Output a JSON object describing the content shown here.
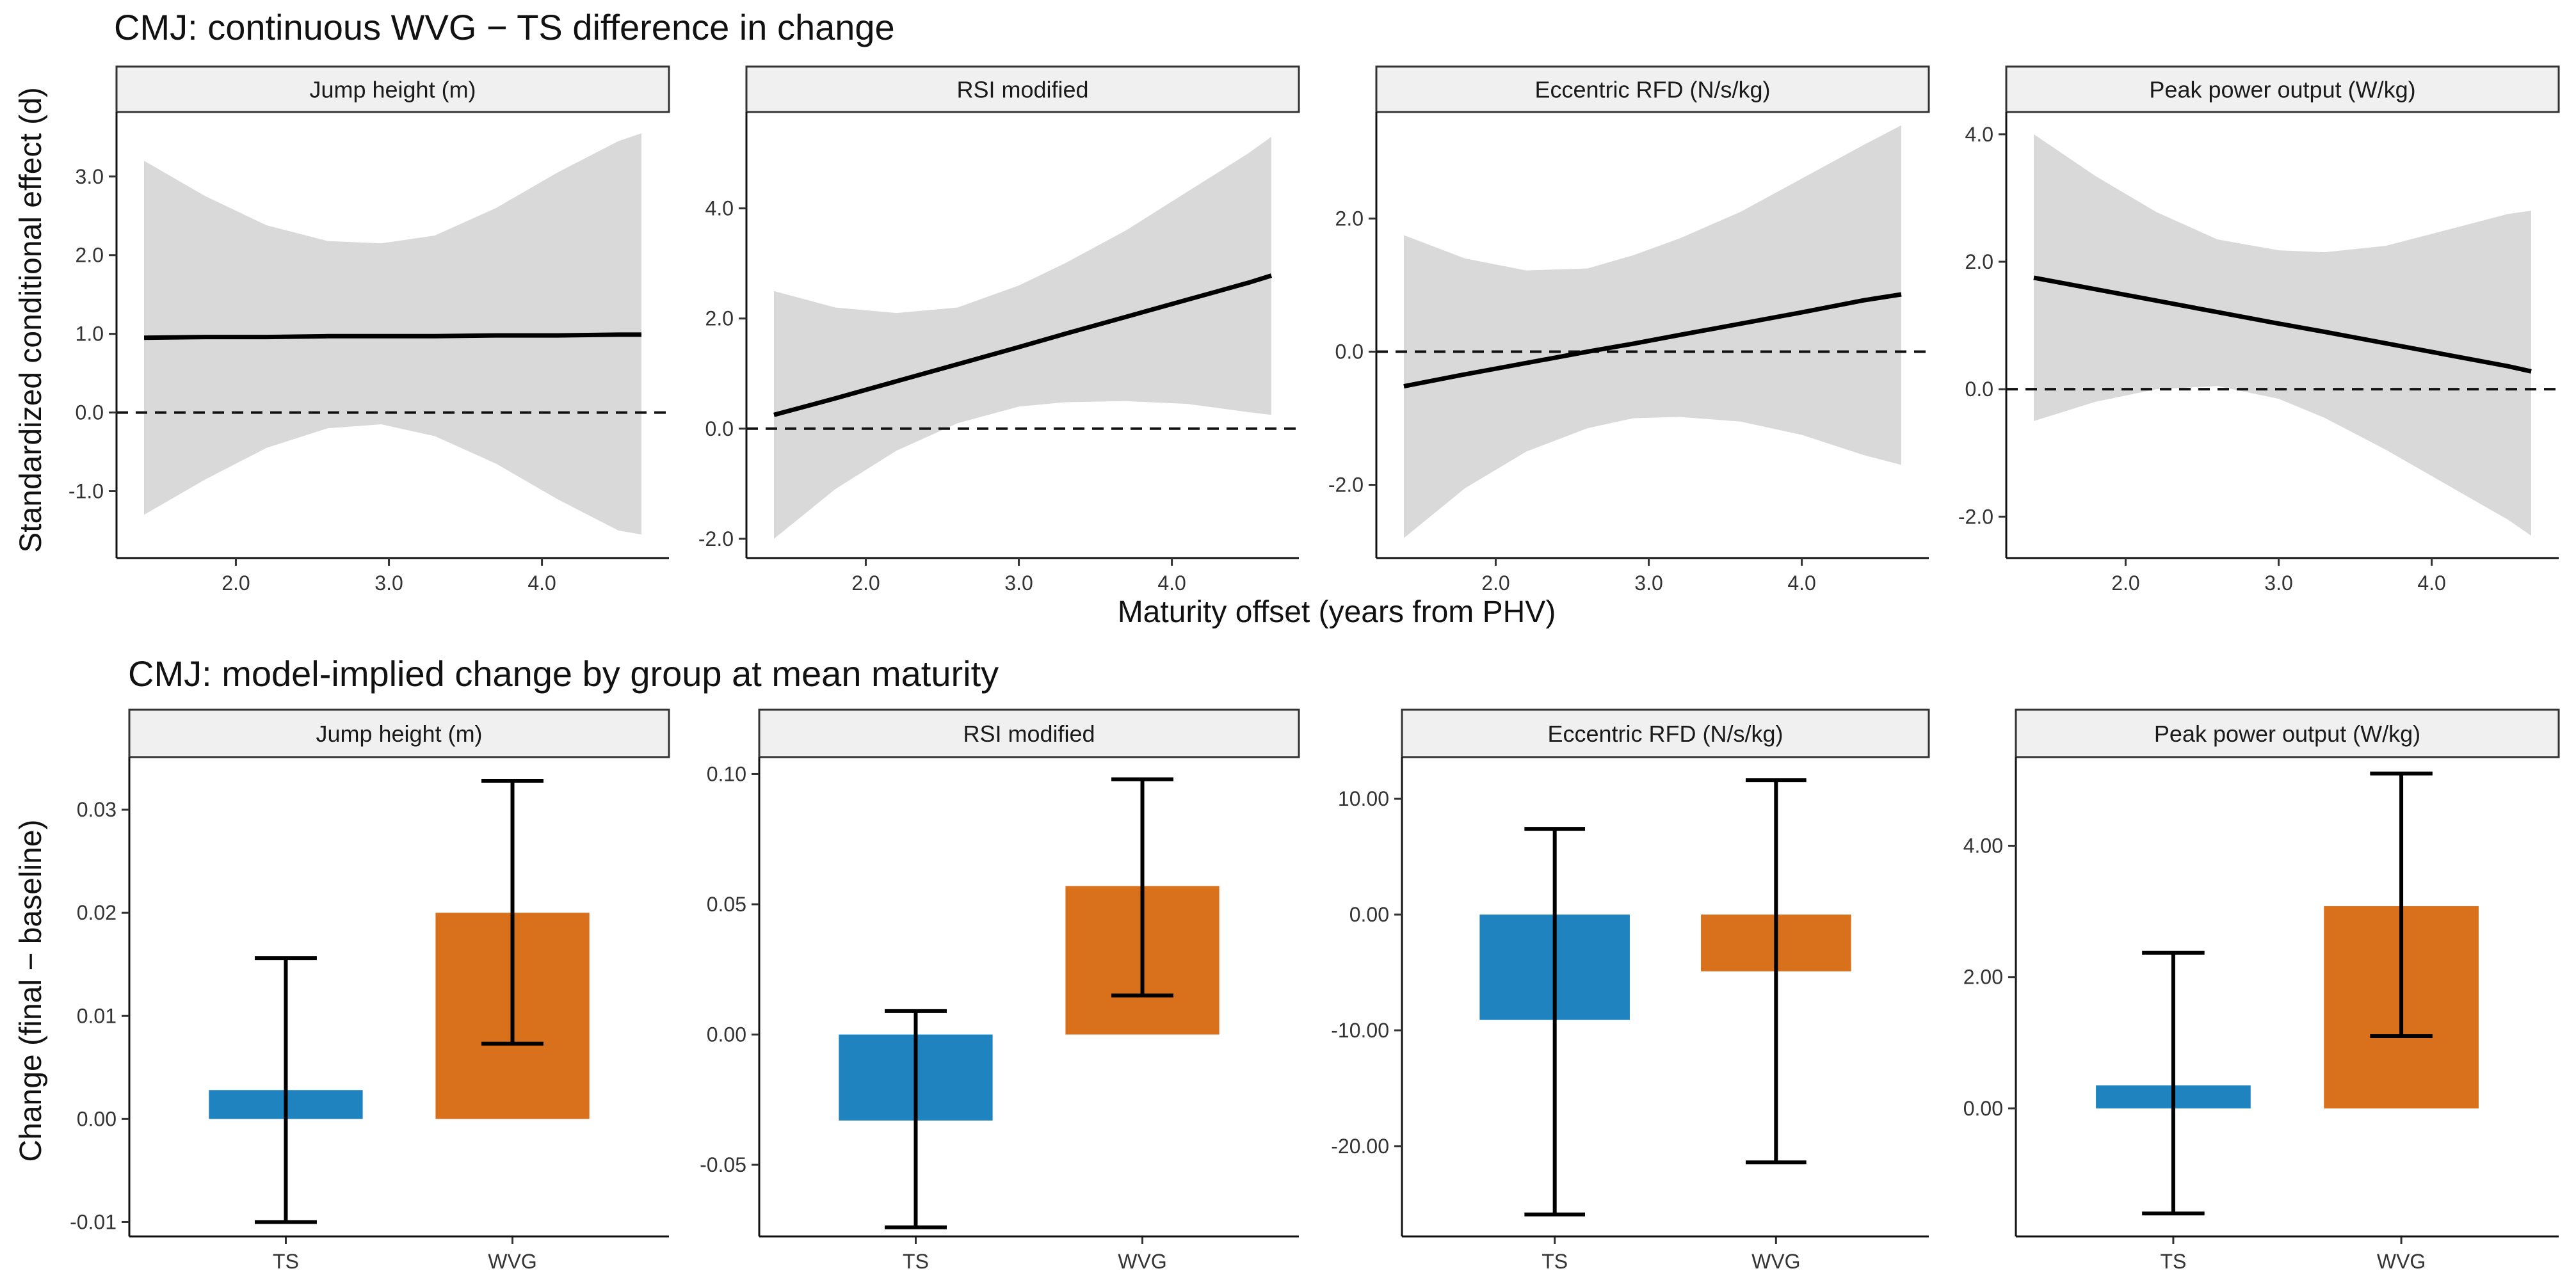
{
  "chart_data": [
    {
      "section": "top",
      "type": "line",
      "title": "CMJ: continuous WVG − TS difference in change",
      "ylabel": "Standardized conditional effect (d)",
      "xlabel": "Maturity offset (years from PHV)",
      "panels": [
        {
          "strip": "Jump height (m)",
          "xlim": [
            1.22,
            4.83
          ],
          "ylim": [
            -1.85,
            3.82
          ],
          "yticks": [
            -1.0,
            0.0,
            1.0,
            2.0,
            3.0
          ],
          "ytick_labels": [
            "-1.0",
            "0.0",
            "1.0",
            "2.0",
            "3.0"
          ],
          "xticks": [
            2.0,
            3.0,
            4.0
          ],
          "xtick_labels": [
            "2.0",
            "3.0",
            "4.0"
          ],
          "x": [
            1.4,
            1.8,
            2.2,
            2.6,
            2.95,
            3.3,
            3.7,
            4.1,
            4.5,
            4.65
          ],
          "fit": [
            0.95,
            0.96,
            0.96,
            0.97,
            0.97,
            0.97,
            0.98,
            0.98,
            0.99,
            0.99
          ],
          "lower": [
            -1.3,
            -0.85,
            -0.45,
            -0.2,
            -0.15,
            -0.3,
            -0.65,
            -1.1,
            -1.5,
            -1.55
          ],
          "upper": [
            3.2,
            2.75,
            2.38,
            2.18,
            2.15,
            2.25,
            2.6,
            3.05,
            3.45,
            3.55
          ]
        },
        {
          "strip": "RSI modified",
          "xlim": [
            1.22,
            4.83
          ],
          "ylim": [
            -2.35,
            5.75
          ],
          "yticks": [
            -2.0,
            0.0,
            2.0,
            4.0
          ],
          "ytick_labels": [
            "-2.0",
            "0.0",
            "2.0",
            "4.0"
          ],
          "xticks": [
            2.0,
            3.0,
            4.0
          ],
          "xtick_labels": [
            "2.0",
            "3.0",
            "4.0"
          ],
          "x": [
            1.4,
            1.8,
            2.2,
            2.6,
            3.0,
            3.3,
            3.7,
            4.1,
            4.5,
            4.65
          ],
          "fit": [
            0.25,
            0.55,
            0.86,
            1.17,
            1.48,
            1.72,
            2.03,
            2.34,
            2.65,
            2.78
          ],
          "lower": [
            -2.0,
            -1.1,
            -0.4,
            0.1,
            0.4,
            0.48,
            0.5,
            0.45,
            0.3,
            0.25
          ],
          "upper": [
            2.5,
            2.2,
            2.1,
            2.2,
            2.6,
            3.0,
            3.6,
            4.3,
            5.0,
            5.3
          ]
        },
        {
          "strip": "Eccentric RFD (N/s/kg)",
          "xlim": [
            1.22,
            4.83
          ],
          "ylim": [
            -3.1,
            3.6
          ],
          "yticks": [
            -2.0,
            0.0,
            2.0
          ],
          "ytick_labels": [
            "-2.0",
            "0.0",
            "2.0"
          ],
          "xticks": [
            2.0,
            3.0,
            4.0
          ],
          "xtick_labels": [
            "2.0",
            "3.0",
            "4.0"
          ],
          "x": [
            1.4,
            1.8,
            2.2,
            2.6,
            2.9,
            3.2,
            3.6,
            4.0,
            4.4,
            4.65
          ],
          "fit": [
            -0.52,
            -0.34,
            -0.17,
            0.0,
            0.12,
            0.25,
            0.42,
            0.59,
            0.77,
            0.86
          ],
          "lower": [
            -2.8,
            -2.05,
            -1.5,
            -1.15,
            -1.0,
            -0.98,
            -1.05,
            -1.25,
            -1.55,
            -1.7
          ],
          "upper": [
            1.75,
            1.4,
            1.22,
            1.25,
            1.45,
            1.7,
            2.1,
            2.6,
            3.1,
            3.4
          ]
        },
        {
          "strip": "Peak power output (W/kg)",
          "xlim": [
            1.22,
            4.83
          ],
          "ylim": [
            -2.65,
            4.35
          ],
          "yticks": [
            -2.0,
            0.0,
            2.0,
            4.0
          ],
          "ytick_labels": [
            "-2.0",
            "0.0",
            "2.0",
            "4.0"
          ],
          "xticks": [
            2.0,
            3.0,
            4.0
          ],
          "xtick_labels": [
            "2.0",
            "3.0",
            "4.0"
          ],
          "x": [
            1.4,
            1.8,
            2.2,
            2.6,
            3.0,
            3.3,
            3.7,
            4.1,
            4.5,
            4.65
          ],
          "fit": [
            1.75,
            1.57,
            1.39,
            1.21,
            1.03,
            0.9,
            0.72,
            0.54,
            0.36,
            0.28
          ],
          "lower": [
            -0.5,
            -0.2,
            0.0,
            0.05,
            -0.15,
            -0.45,
            -0.95,
            -1.5,
            -2.05,
            -2.3
          ],
          "upper": [
            4.0,
            3.35,
            2.78,
            2.35,
            2.18,
            2.15,
            2.25,
            2.5,
            2.75,
            2.8
          ]
        }
      ]
    },
    {
      "section": "bottom",
      "type": "bar",
      "title": "CMJ: model-implied change by group at mean maturity",
      "ylabel": "Change (final − baseline)",
      "categories": [
        "TS",
        "WVG"
      ],
      "colors": [
        "#1f83bf",
        "#d9701b"
      ],
      "panels": [
        {
          "strip": "Jump height (m)",
          "ylim": [
            -0.0114,
            0.0351
          ],
          "yticks": [
            -0.01,
            0.0,
            0.01,
            0.02,
            0.03
          ],
          "ytick_labels": [
            "-0.01",
            "0.00",
            "0.01",
            "0.02",
            "0.03"
          ],
          "values": [
            0.0028,
            0.02
          ],
          "err_low": [
            -0.01,
            0.0073
          ],
          "err_high": [
            0.0156,
            0.0328
          ]
        },
        {
          "strip": "RSI modified",
          "ylim": [
            -0.0775,
            0.1065
          ],
          "yticks": [
            -0.05,
            0.0,
            0.05,
            0.1
          ],
          "ytick_labels": [
            "-0.05",
            "0.00",
            "0.05",
            "0.10"
          ],
          "values": [
            -0.033,
            0.057
          ],
          "err_low": [
            -0.074,
            0.015
          ],
          "err_high": [
            0.009,
            0.098
          ]
        },
        {
          "strip": "Eccentric RFD (N/s/kg)",
          "ylim": [
            -27.8,
            13.6
          ],
          "yticks": [
            -20.0,
            -10.0,
            0.0,
            10.0
          ],
          "ytick_labels": [
            "-20.00",
            "-10.00",
            "0.00",
            "10.00"
          ],
          "values": [
            -9.1,
            -4.9
          ],
          "err_low": [
            -25.9,
            -21.4
          ],
          "err_high": [
            7.4,
            11.6
          ]
        },
        {
          "strip": "Peak power output (W/kg)",
          "ylim": [
            -1.95,
            5.35
          ],
          "yticks": [
            0.0,
            2.0,
            4.0
          ],
          "ytick_labels": [
            "0.00",
            "2.00",
            "4.00"
          ],
          "values": [
            0.35,
            3.08
          ],
          "err_low": [
            -1.6,
            1.1
          ],
          "err_high": [
            2.37,
            5.1
          ]
        }
      ]
    }
  ]
}
